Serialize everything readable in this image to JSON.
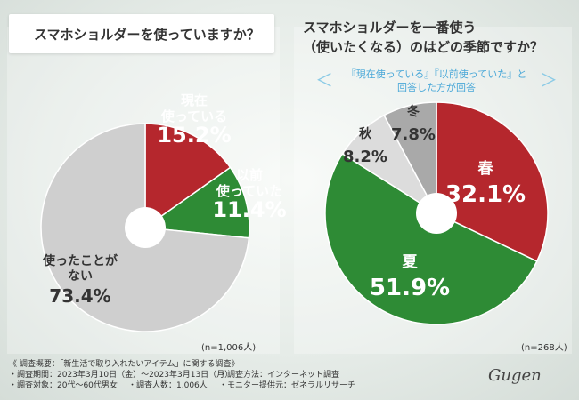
{
  "charts": {
    "left": {
      "question": "スマホショルダーを使っていますか？",
      "sample": "(n=1,006人)"
    },
    "right": {
      "question_line1": "スマホショルダーを一番使う",
      "question_line2": "（使いたくなる）のはどの季節ですか？",
      "subtitle_line1": "『現在使っている』『以前使っていた』と",
      "subtitle_line2": "回答した方が回答",
      "bracket_left": "＜",
      "bracket_right": "＞",
      "sample": "(n=268人)"
    }
  },
  "chart_data": [
    {
      "type": "pie",
      "title": "スマホショルダーを使っていますか？",
      "slices": [
        {
          "label": "現在使っている",
          "label_lines": [
            "現在",
            "使っている"
          ],
          "value": 15.2,
          "value_text": "15.2%",
          "color": "#b5272d",
          "text_color": "#ffffff"
        },
        {
          "label": "以前使っていた",
          "label_lines": [
            "以前",
            "使っていた"
          ],
          "value": 11.4,
          "value_text": "11.4%",
          "color": "#2e8b35",
          "text_color": "#ffffff"
        },
        {
          "label": "使ったことがない",
          "label_lines": [
            "使ったことが",
            "ない"
          ],
          "value": 73.4,
          "value_text": "73.4%",
          "color": "#cfcfcf",
          "text_color": "#333333"
        }
      ],
      "note": "(n=1,006人)"
    },
    {
      "type": "pie",
      "title": "スマホショルダーを一番使う（使いたくなる）のはどの季節ですか？",
      "slices": [
        {
          "label": "春",
          "label_lines": [
            "春"
          ],
          "value": 32.1,
          "value_text": "32.1%",
          "color": "#b5272d",
          "text_color": "#ffffff"
        },
        {
          "label": "夏",
          "label_lines": [
            "夏"
          ],
          "value": 51.9,
          "value_text": "51.9%",
          "color": "#2e8b35",
          "text_color": "#ffffff"
        },
        {
          "label": "秋",
          "label_lines": [
            "秋"
          ],
          "value": 8.2,
          "value_text": "8.2%",
          "color": "#dcdcdc",
          "text_color": "#333333"
        },
        {
          "label": "冬",
          "label_lines": [
            "冬"
          ],
          "value": 7.8,
          "value_text": "7.8%",
          "color": "#a9a9a9",
          "text_color": "#333333"
        }
      ],
      "note": "(n=268人)"
    }
  ],
  "footer": {
    "title": "《 調査概要：「新生活で取り入れたいアイテム」に関する調査》",
    "period": "・調査期間：2023年3月10日（金）〜2023年3月13日（月）",
    "method": "・調査方法：インターネット調査",
    "target": "・調査対象：20代〜60代男女",
    "count": "・調査人数：1,006人",
    "provider": "・モニター提供元：ゼネラルリサーチ"
  },
  "logo": "Gugen"
}
